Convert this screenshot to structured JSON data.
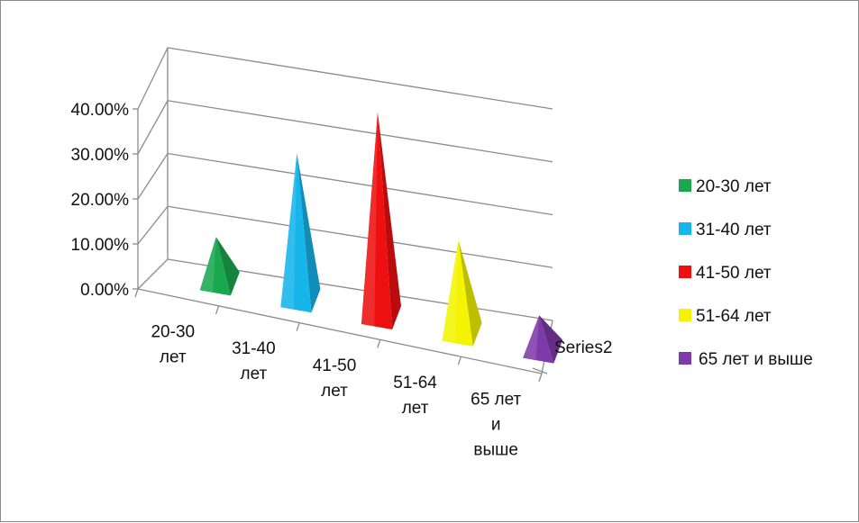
{
  "chart_data": {
    "type": "bar",
    "style": "3d-pyramid",
    "title": "",
    "xlabel": "",
    "ylabel": "",
    "depth_series_label": "Series2",
    "categories": [
      "20-30 лет",
      "31-40 лет",
      "41-50 лет",
      "51-64 лет",
      "65 лет и выше"
    ],
    "category_tick_lines": [
      [
        "20-30",
        "лет"
      ],
      [
        "31-40",
        "лет"
      ],
      [
        "41-50",
        "лет"
      ],
      [
        "51-64",
        "лет"
      ],
      [
        "65 лет",
        "и",
        "выше"
      ]
    ],
    "values": [
      0.07,
      0.26,
      0.37,
      0.16,
      0.05
    ],
    "ylim": [
      0,
      0.4
    ],
    "y_ticks": [
      "0.00%",
      "10.00%",
      "20.00%",
      "30.00%",
      "40.00%"
    ],
    "grid": true,
    "legend_position": "right",
    "legend": [
      {
        "label": "20-30 лет",
        "color": "#1aa84f"
      },
      {
        "label": "31-40 лет",
        "color": "#16b5ea"
      },
      {
        "label": "41-50 лет",
        "color": "#ee1010"
      },
      {
        "label": "51-64 лет",
        "color": "#f4f400"
      },
      {
        "label": "65 лет и выше",
        "color": "#7d3aa8"
      }
    ],
    "colors": [
      "#1aa84f",
      "#16b5ea",
      "#ee1010",
      "#f4f400",
      "#7d3aa8"
    ]
  }
}
